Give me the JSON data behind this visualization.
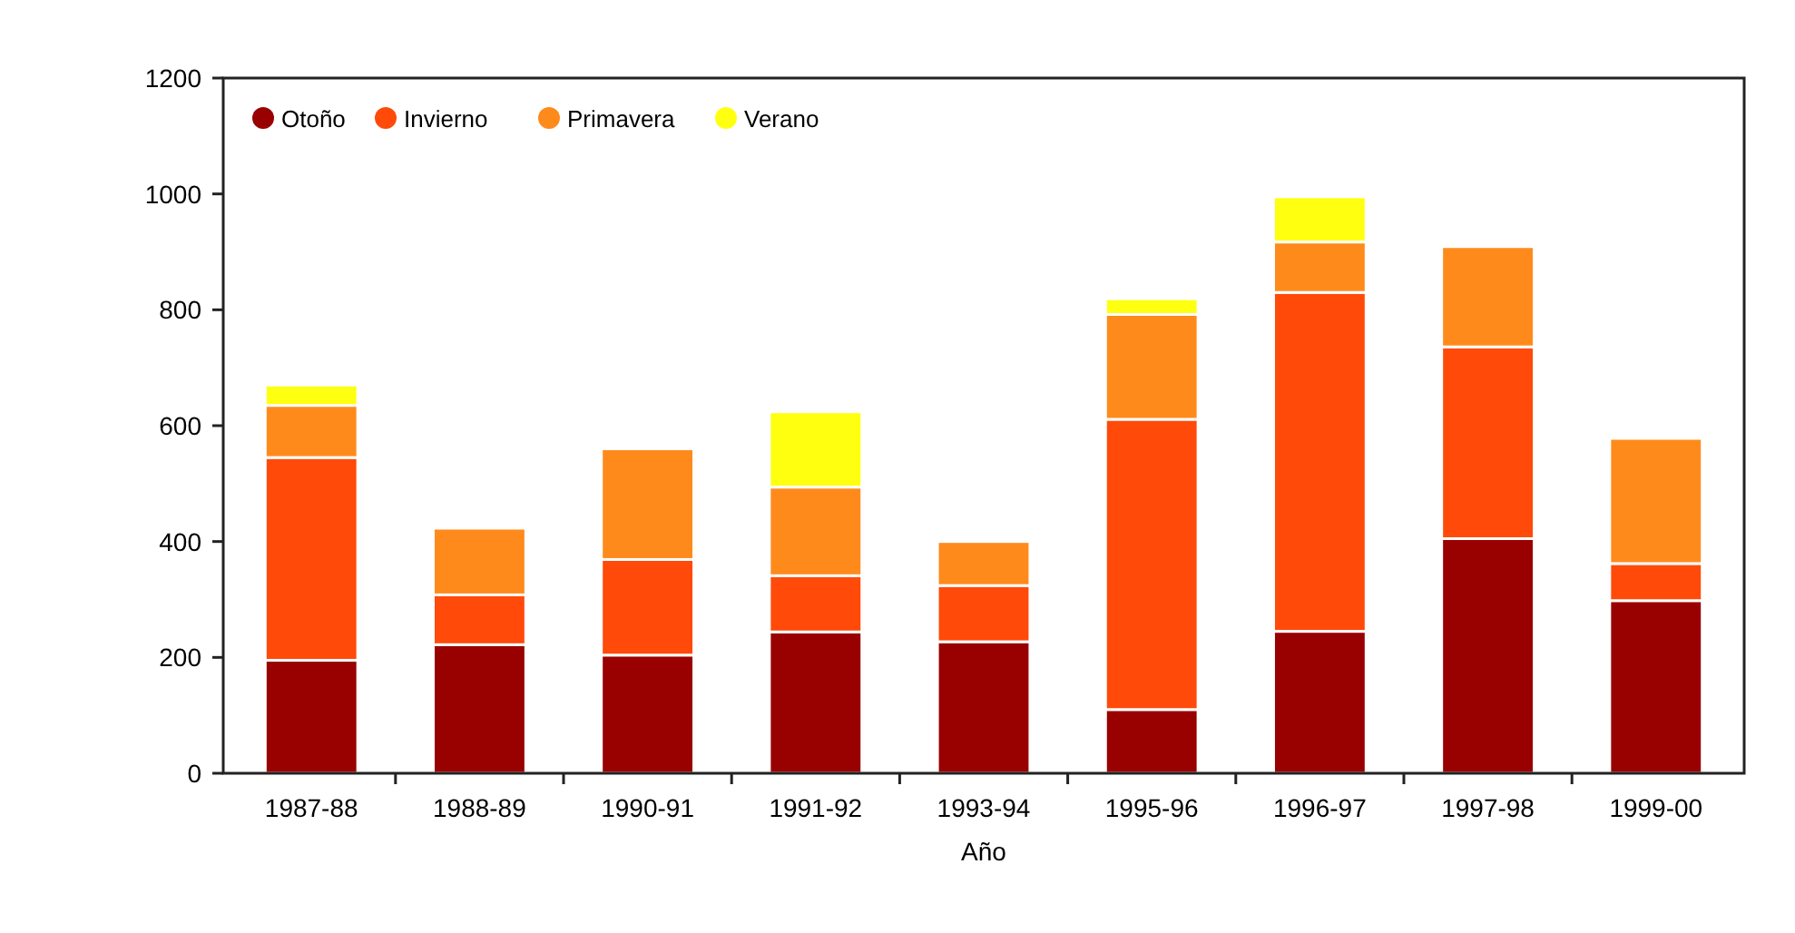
{
  "chart_data": {
    "type": "bar",
    "stacked": true,
    "xlabel": "Año",
    "categories": [
      "1987-88",
      "1988-89",
      "1990-91",
      "1991-92",
      "1993-94",
      "1995-96",
      "1996-97",
      "1997-98",
      "1999-00"
    ],
    "series": [
      {
        "name": "Otoño",
        "color": "#990000",
        "values": [
          195,
          222,
          204,
          244,
          227,
          110,
          245,
          405,
          298
        ]
      },
      {
        "name": "Invierno",
        "color": "#ff4a0a",
        "values": [
          350,
          86,
          165,
          97,
          97,
          501,
          585,
          331,
          64
        ]
      },
      {
        "name": "Primavera",
        "color": "#ff8a1c",
        "values": [
          90,
          115,
          191,
          153,
          76,
          181,
          87,
          173,
          216
        ]
      },
      {
        "name": "Verano",
        "color": "#ffff10",
        "values": [
          35,
          0,
          0,
          130,
          0,
          27,
          78,
          0,
          0
        ]
      }
    ],
    "ylim": [
      0,
      1200
    ],
    "yticks": [
      0,
      200,
      400,
      600,
      800,
      1000,
      1200
    ],
    "grid": false,
    "legend": "top left"
  }
}
